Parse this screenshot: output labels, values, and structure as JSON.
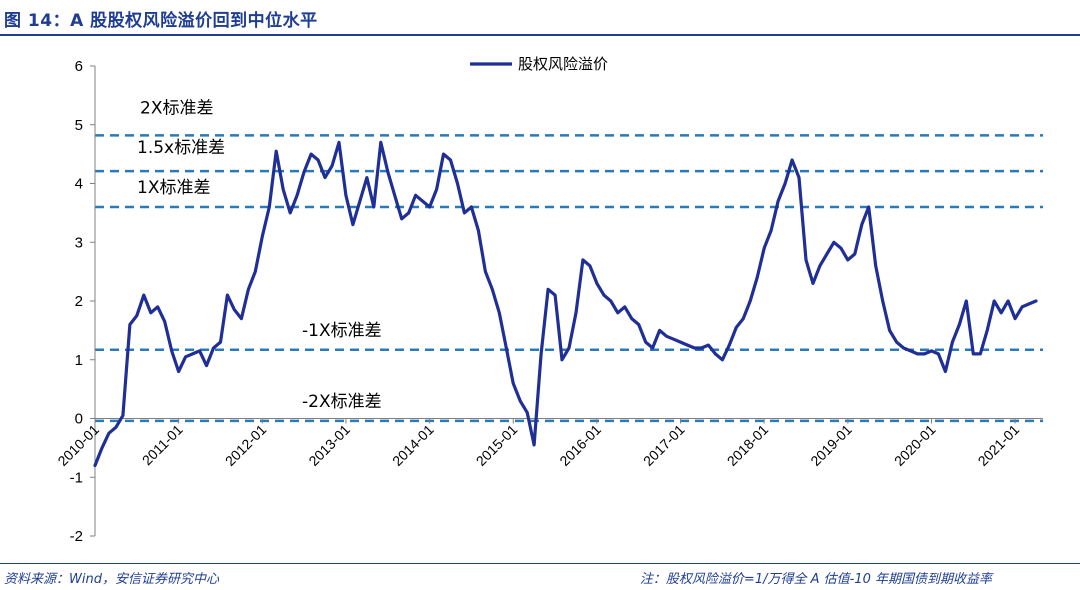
{
  "figure": {
    "title": "图 14：A 股股权风险溢价回到中位水平",
    "source": "资料来源：Wind，安信证券研究中心",
    "note": "注：股权风险溢价=1/万得全 A 估值-10 年期国债到期收益率"
  },
  "colors": {
    "series": "#1f2f96",
    "reference": "#2a7ab8",
    "title": "#1f3d94"
  },
  "chart_data": {
    "type": "line",
    "title": "图 14：A 股股权风险溢价回到中位水平",
    "xlabel": "",
    "ylabel": "",
    "ylim": [
      -2,
      6
    ],
    "yticks": [
      "6",
      "5",
      "4",
      "3",
      "2",
      "1",
      "0",
      "-1",
      "-2"
    ],
    "xticks": [
      "2010-01",
      "2011-01",
      "2012-01",
      "2013-01",
      "2014-01",
      "2015-01",
      "2016-01",
      "2017-01",
      "2018-01",
      "2019-01",
      "2020-01",
      "2021-01"
    ],
    "legend": {
      "position": "top-center",
      "entries": [
        "股权风险溢价"
      ]
    },
    "grid": false,
    "reference_lines": [
      {
        "label": "2X标准差",
        "value": 4.82
      },
      {
        "label": "1.5x标准差",
        "value": 4.21
      },
      {
        "label": "1X标准差",
        "value": 3.6
      },
      {
        "label": "-1X标准差",
        "value": 1.17
      },
      {
        "label": "-2X标准差",
        "value": -0.04
      }
    ],
    "series": [
      {
        "name": "股权风险溢价",
        "x": [
          "2010-01",
          "2010-02",
          "2010-03",
          "2010-04",
          "2010-05",
          "2010-06",
          "2010-07",
          "2010-08",
          "2010-09",
          "2010-10",
          "2010-11",
          "2010-12",
          "2011-01",
          "2011-02",
          "2011-03",
          "2011-04",
          "2011-05",
          "2011-06",
          "2011-07",
          "2011-08",
          "2011-09",
          "2011-10",
          "2011-11",
          "2011-12",
          "2012-01",
          "2012-02",
          "2012-03",
          "2012-04",
          "2012-05",
          "2012-06",
          "2012-07",
          "2012-08",
          "2012-09",
          "2012-10",
          "2012-11",
          "2012-12",
          "2013-01",
          "2013-02",
          "2013-03",
          "2013-04",
          "2013-05",
          "2013-06",
          "2013-07",
          "2013-08",
          "2013-09",
          "2013-10",
          "2013-11",
          "2013-12",
          "2014-01",
          "2014-02",
          "2014-03",
          "2014-04",
          "2014-05",
          "2014-06",
          "2014-07",
          "2014-08",
          "2014-09",
          "2014-10",
          "2014-11",
          "2014-12",
          "2015-01",
          "2015-02",
          "2015-03",
          "2015-04",
          "2015-05",
          "2015-06",
          "2015-07",
          "2015-08",
          "2015-09",
          "2015-10",
          "2015-11",
          "2015-12",
          "2016-01",
          "2016-02",
          "2016-03",
          "2016-04",
          "2016-05",
          "2016-06",
          "2016-07",
          "2016-08",
          "2016-09",
          "2016-10",
          "2016-11",
          "2016-12",
          "2017-01",
          "2017-02",
          "2017-03",
          "2017-04",
          "2017-05",
          "2017-06",
          "2017-07",
          "2017-08",
          "2017-09",
          "2017-10",
          "2017-11",
          "2017-12",
          "2018-01",
          "2018-02",
          "2018-03",
          "2018-04",
          "2018-05",
          "2018-06",
          "2018-07",
          "2018-08",
          "2018-09",
          "2018-10",
          "2018-11",
          "2018-12",
          "2019-01",
          "2019-02",
          "2019-03",
          "2019-04",
          "2019-05",
          "2019-06",
          "2019-07",
          "2019-08",
          "2019-09",
          "2019-10",
          "2019-11",
          "2019-12",
          "2020-01",
          "2020-02",
          "2020-03",
          "2020-04",
          "2020-05",
          "2020-06",
          "2020-07",
          "2020-08",
          "2020-09",
          "2020-10",
          "2020-11",
          "2020-12",
          "2021-01",
          "2021-02",
          "2021-03",
          "2021-04"
        ],
        "values": [
          -0.8,
          -0.5,
          -0.25,
          -0.15,
          0.05,
          1.6,
          1.75,
          2.1,
          1.8,
          1.9,
          1.65,
          1.15,
          0.8,
          1.05,
          1.1,
          1.15,
          0.9,
          1.2,
          1.3,
          2.1,
          1.85,
          1.7,
          2.2,
          2.5,
          3.1,
          3.6,
          4.55,
          3.9,
          3.5,
          3.8,
          4.2,
          4.5,
          4.4,
          4.1,
          4.3,
          4.7,
          3.8,
          3.3,
          3.7,
          4.1,
          3.6,
          4.7,
          4.2,
          3.8,
          3.4,
          3.5,
          3.8,
          3.7,
          3.6,
          3.9,
          4.5,
          4.4,
          4.0,
          3.5,
          3.6,
          3.2,
          2.5,
          2.2,
          1.8,
          1.2,
          0.6,
          0.3,
          0.1,
          -0.45,
          1.1,
          2.2,
          2.1,
          1.0,
          1.2,
          1.8,
          2.7,
          2.6,
          2.3,
          2.1,
          2.0,
          1.8,
          1.9,
          1.7,
          1.6,
          1.3,
          1.2,
          1.5,
          1.4,
          1.35,
          1.3,
          1.25,
          1.2,
          1.2,
          1.25,
          1.1,
          1.0,
          1.25,
          1.55,
          1.7,
          2.0,
          2.4,
          2.9,
          3.2,
          3.7,
          4.0,
          4.4,
          4.1,
          2.7,
          2.3,
          2.6,
          2.8,
          3.0,
          2.9,
          2.7,
          2.8,
          3.3,
          3.6,
          2.6,
          2.0,
          1.5,
          1.3,
          1.2,
          1.15,
          1.1,
          1.1,
          1.15,
          1.1,
          0.8,
          1.3,
          1.6,
          2.0,
          1.1,
          1.1,
          1.5,
          2.0,
          1.8,
          2.0,
          1.7,
          1.9,
          1.95,
          2.0
        ]
      }
    ]
  }
}
